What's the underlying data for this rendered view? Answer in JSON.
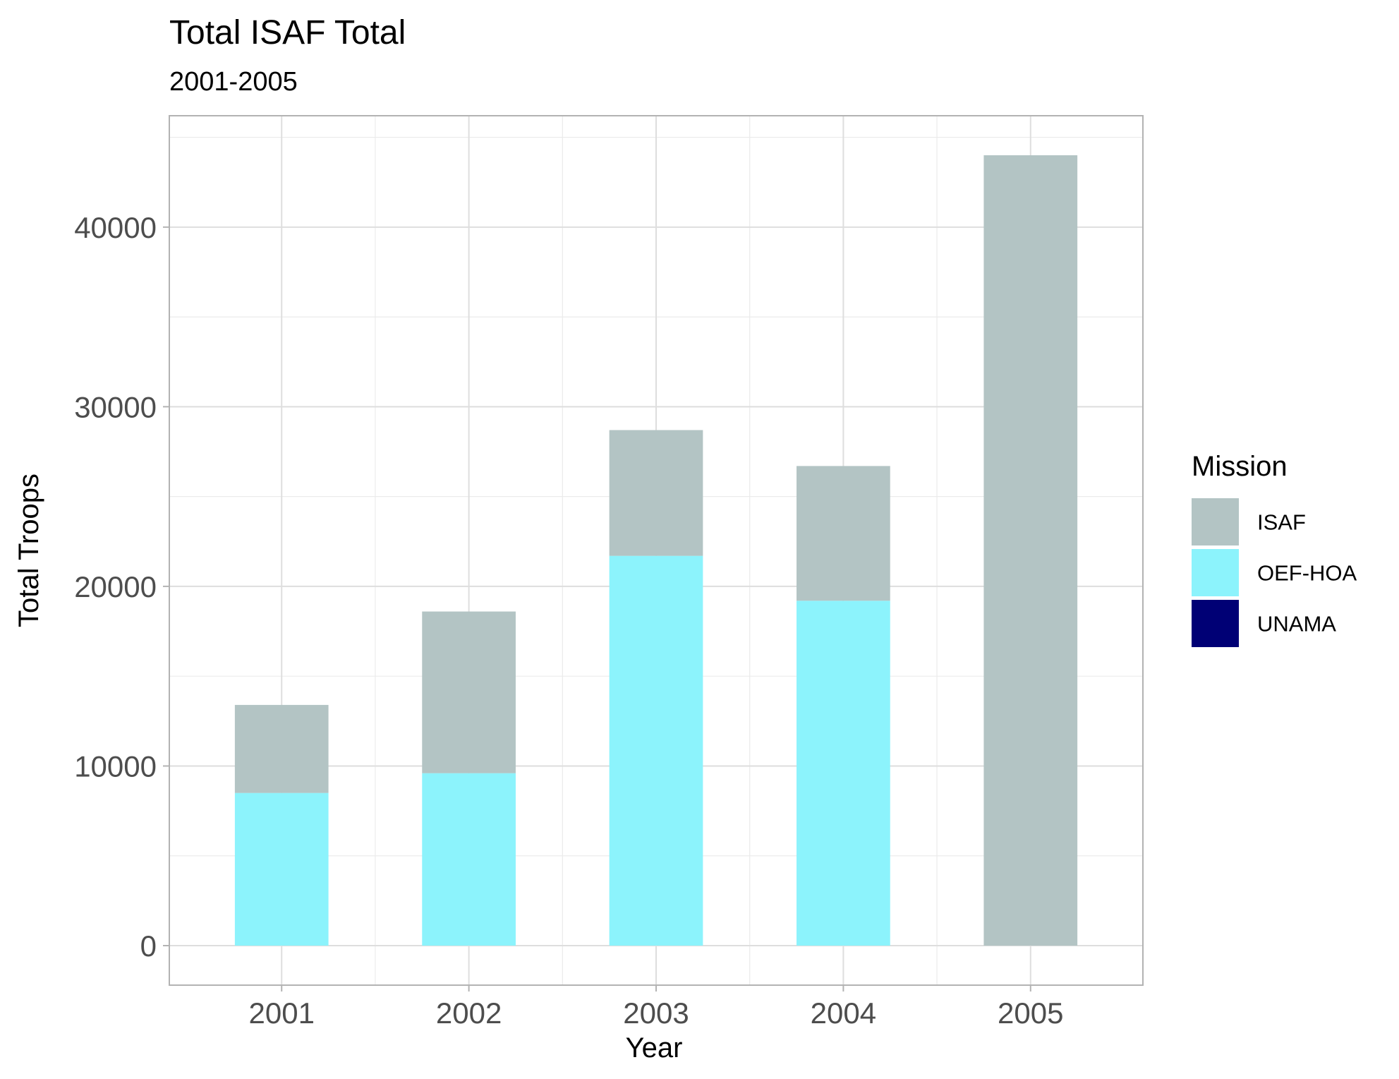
{
  "chart_data": {
    "type": "bar",
    "stacked": true,
    "title": "Total ISAF Total",
    "subtitle": "2001-2005",
    "xlabel": "Year",
    "ylabel": "Total Troops",
    "categories": [
      "2001",
      "2002",
      "2003",
      "2004",
      "2005"
    ],
    "ylim": [
      -2200,
      46200
    ],
    "y_ticks": [
      0,
      10000,
      20000,
      30000,
      40000
    ],
    "y_tick_labels": [
      "0",
      "10000",
      "20000",
      "30000",
      "40000"
    ],
    "grid": true,
    "legend": {
      "title": "Mission",
      "position": "right",
      "entries": [
        "ISAF",
        "OEF-HOA",
        "UNAMA"
      ]
    },
    "series": [
      {
        "name": "OEF-HOA",
        "color": "#8cf3fc",
        "values": [
          8500,
          9600,
          21700,
          19200,
          0
        ]
      },
      {
        "name": "ISAF",
        "color": "#b3c4c4",
        "values": [
          4900,
          9000,
          7000,
          7500,
          44000
        ]
      },
      {
        "name": "UNAMA",
        "color": "#000075",
        "values": [
          0,
          0,
          0,
          0,
          0
        ]
      }
    ]
  }
}
